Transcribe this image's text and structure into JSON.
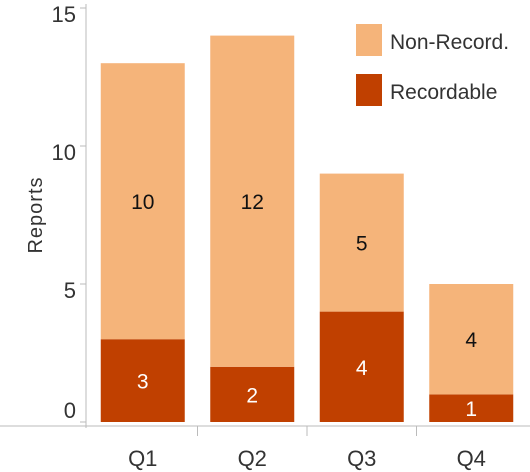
{
  "chart_data": {
    "type": "bar",
    "stacked": true,
    "categories": [
      "Q1",
      "Q2",
      "Q3",
      "Q4"
    ],
    "series": [
      {
        "name": "Recordable",
        "values": [
          3,
          2,
          4,
          1
        ],
        "color": "#c04000",
        "label_color": "#ffffff"
      },
      {
        "name": "Non-Record.",
        "values": [
          10,
          12,
          5,
          4
        ],
        "color": "#f5b47a",
        "label_color": "#111111"
      }
    ],
    "title": "",
    "xlabel": "",
    "ylabel": "Reports",
    "ylim": [
      0,
      15
    ],
    "yticks": [
      0,
      5,
      10,
      15
    ],
    "grid": false,
    "legend": "top-right",
    "legend_order": [
      "Non-Record.",
      "Recordable"
    ],
    "axis_color": "#bbbbbb"
  }
}
